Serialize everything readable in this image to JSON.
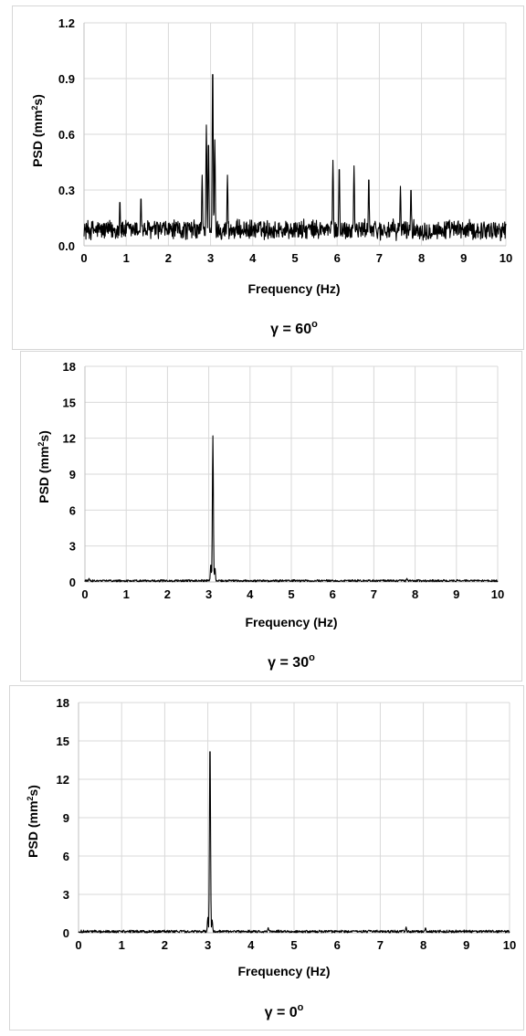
{
  "figure": {
    "panels": [
      {
        "caption_symbol": "γ",
        "caption_rest": " = 60",
        "caption_sup": "o"
      },
      {
        "caption_symbol": "γ",
        "caption_rest": " = 30",
        "caption_sup": "o"
      },
      {
        "caption_symbol": "γ",
        "caption_rest": " = 0",
        "caption_sup": "o"
      }
    ]
  },
  "chart_data": [
    {
      "type": "line",
      "xlabel": "Frequency (Hz)",
      "ylabel_main": "PSD (mm",
      "ylabel_sup": "2",
      "ylabel_end": "s)",
      "xlim": [
        0,
        10
      ],
      "ylim": [
        0,
        1.2
      ],
      "xticks": [
        "0",
        "1",
        "2",
        "3",
        "4",
        "5",
        "6",
        "7",
        "8",
        "9",
        "10"
      ],
      "yticks": [
        "0.0",
        "0.3",
        "0.6",
        "0.9",
        "1.2"
      ],
      "grid": true,
      "caption": "γ = 60°",
      "series": [
        {
          "baseline": 0.085,
          "noise": 0.06,
          "peaks": [
            {
              "x": 2.9,
              "y": 0.65
            },
            {
              "x": 2.95,
              "y": 0.58
            },
            {
              "x": 3.05,
              "y": 0.99
            },
            {
              "x": 3.1,
              "y": 0.57
            },
            {
              "x": 2.8,
              "y": 0.38
            },
            {
              "x": 3.4,
              "y": 0.38
            },
            {
              "x": 0.85,
              "y": 0.25
            },
            {
              "x": 1.35,
              "y": 0.27
            },
            {
              "x": 5.9,
              "y": 0.46
            },
            {
              "x": 6.05,
              "y": 0.44
            },
            {
              "x": 6.4,
              "y": 0.43
            },
            {
              "x": 6.75,
              "y": 0.38
            },
            {
              "x": 7.5,
              "y": 0.32
            },
            {
              "x": 7.75,
              "y": 0.32
            }
          ]
        }
      ]
    },
    {
      "type": "line",
      "xlabel": "Frequency (Hz)",
      "ylabel_main": "PSD (mm",
      "ylabel_sup": "2",
      "ylabel_end": "s)",
      "xlim": [
        0,
        10
      ],
      "ylim": [
        0,
        18
      ],
      "xticks": [
        "0",
        "1",
        "2",
        "3",
        "4",
        "5",
        "6",
        "7",
        "8",
        "9",
        "10"
      ],
      "yticks": [
        "0",
        "3",
        "6",
        "9",
        "12",
        "15",
        "18"
      ],
      "grid": true,
      "caption": "γ = 30°",
      "series": [
        {
          "baseline": 0.1,
          "noise": 0.1,
          "peaks": [
            {
              "x": 3.1,
              "y": 12.2
            },
            {
              "x": 3.05,
              "y": 1.5
            },
            {
              "x": 3.15,
              "y": 1.2
            },
            {
              "x": 7.8,
              "y": 0.3
            },
            {
              "x": 0.1,
              "y": 0.3
            }
          ]
        }
      ]
    },
    {
      "type": "line",
      "xlabel": "Frequency (Hz)",
      "ylabel_main": "PSD (mm",
      "ylabel_sup": "2",
      "ylabel_end": "s)",
      "xlim": [
        0,
        10
      ],
      "ylim": [
        0,
        18
      ],
      "xticks": [
        "0",
        "1",
        "2",
        "3",
        "4",
        "5",
        "6",
        "7",
        "8",
        "9",
        "10"
      ],
      "yticks": [
        "0",
        "3",
        "6",
        "9",
        "12",
        "15",
        "18"
      ],
      "grid": true,
      "caption": "γ = 0°",
      "series": [
        {
          "baseline": 0.1,
          "noise": 0.12,
          "peaks": [
            {
              "x": 3.05,
              "y": 15.2
            },
            {
              "x": 3.0,
              "y": 1.2
            },
            {
              "x": 3.1,
              "y": 1.0
            },
            {
              "x": 4.4,
              "y": 0.4
            },
            {
              "x": 7.6,
              "y": 0.45
            },
            {
              "x": 8.05,
              "y": 0.4
            }
          ]
        }
      ]
    }
  ]
}
